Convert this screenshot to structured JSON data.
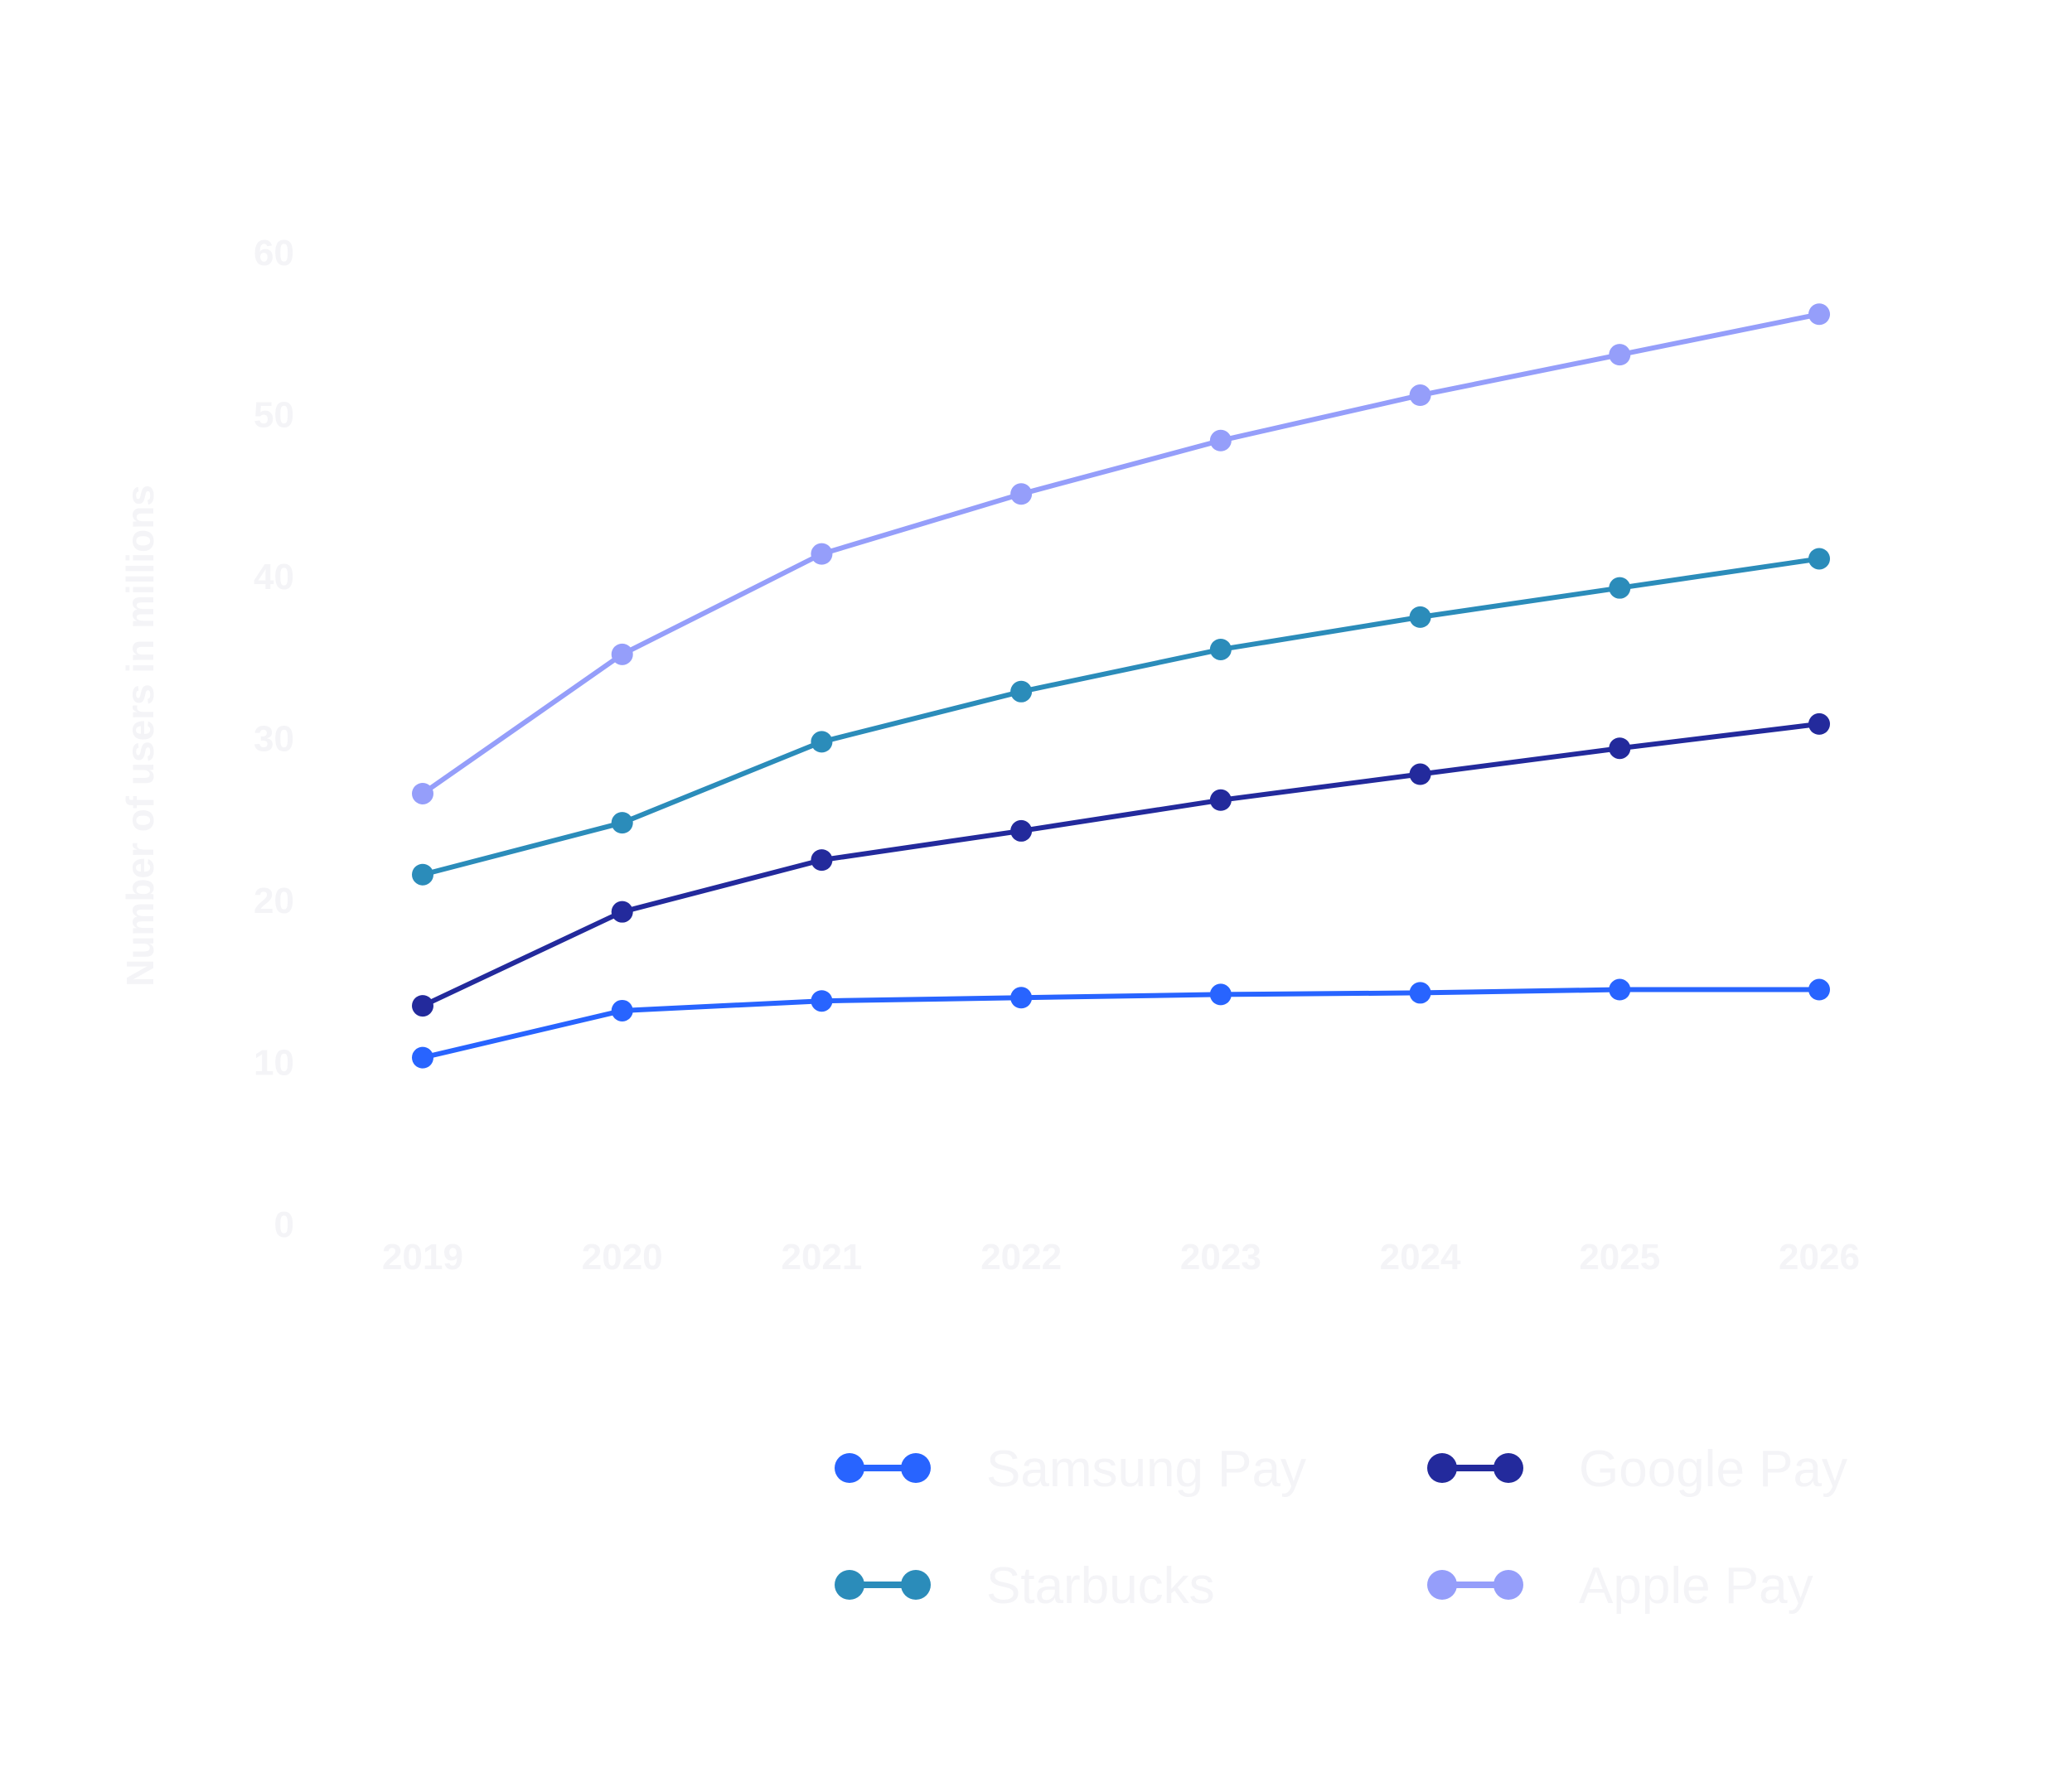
{
  "chart_data": {
    "type": "line",
    "title": "",
    "xlabel": "",
    "ylabel": "Number of users in millions",
    "x": [
      "2019",
      "2020",
      "2021",
      "2022",
      "2023",
      "2024",
      "2025",
      "2026"
    ],
    "y_ticks": [
      "0",
      "10",
      "20",
      "30",
      "40",
      "50",
      "60"
    ],
    "ylim": [
      0,
      60
    ],
    "grid": false,
    "legend_position": "bottom",
    "series": [
      {
        "name": "Samsung Pay",
        "color": "#2864ff",
        "values": [
          10.3,
          13.2,
          13.8,
          14.0,
          14.2,
          14.3,
          14.5,
          14.5
        ]
      },
      {
        "name": "Google Pay",
        "color": "#232a9c",
        "values": [
          13.5,
          19.3,
          22.5,
          24.3,
          26.2,
          27.8,
          29.4,
          30.9
        ]
      },
      {
        "name": "Starbucks",
        "color": "#2b8cba",
        "values": [
          21.6,
          24.8,
          29.8,
          32.9,
          35.5,
          37.5,
          39.3,
          41.1
        ]
      },
      {
        "name": "Apple Pay",
        "color": "#959efa",
        "values": [
          26.6,
          35.2,
          41.4,
          45.1,
          48.4,
          51.2,
          53.7,
          56.2
        ]
      }
    ]
  }
}
